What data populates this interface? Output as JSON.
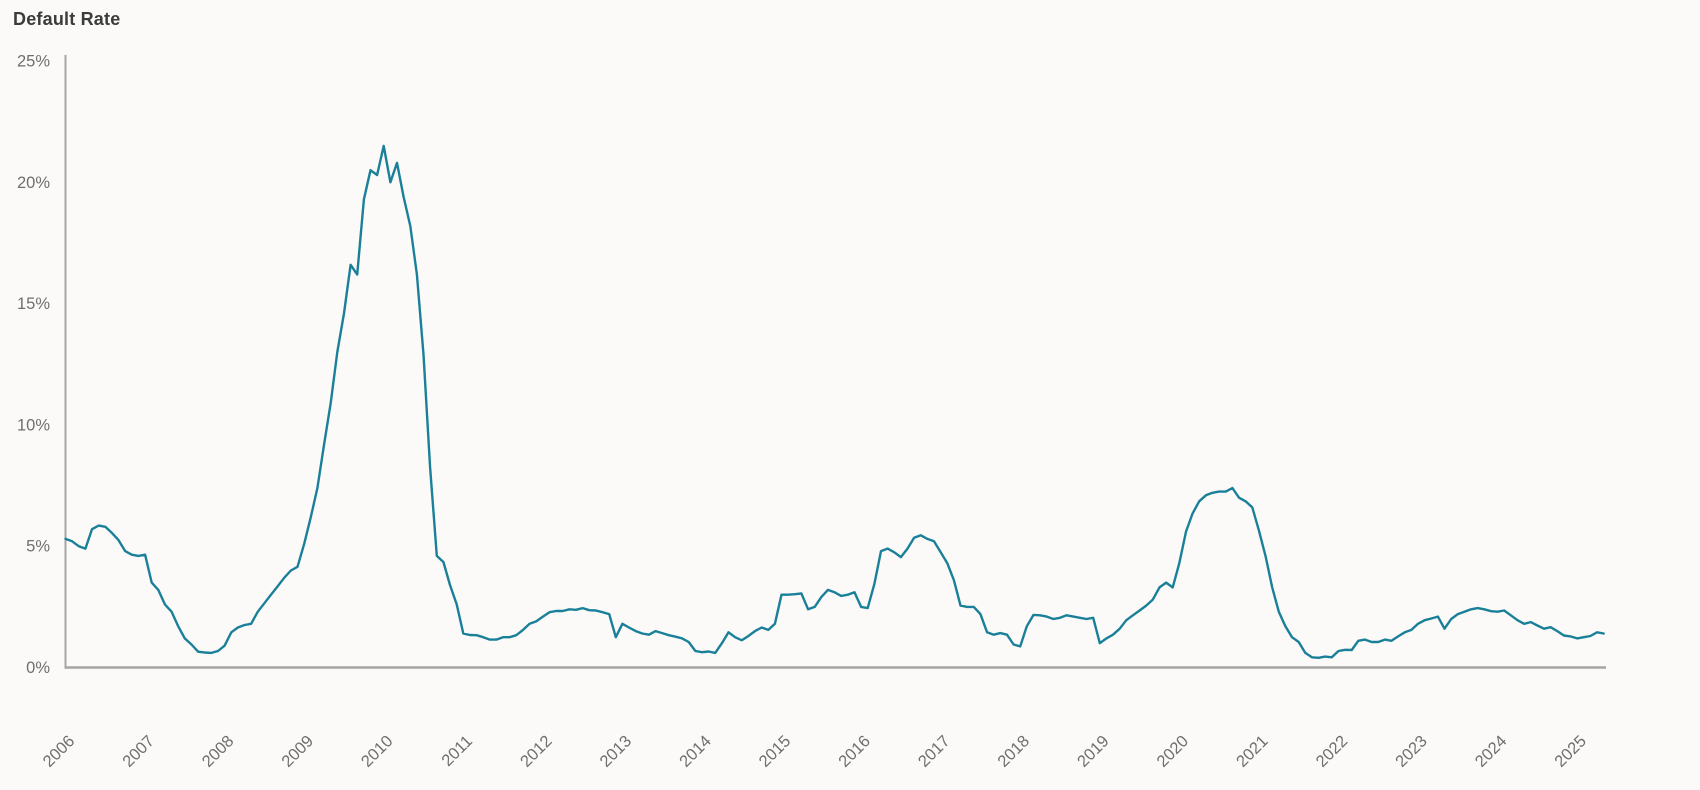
{
  "header": {
    "title": "Default Rate"
  },
  "style": {
    "background": "#fbfaf8",
    "line_color": "#1a8099",
    "axis_color": "#a5a5a5",
    "tick_label_color": "#6f6f6f",
    "title_color": "#3c3c3c"
  },
  "chart_data": {
    "type": "line",
    "title": "Default Rate",
    "xlabel": "",
    "ylabel": "",
    "x_frequency": "monthly",
    "x_start_label": "2006-01",
    "x_end_label": "2025-05",
    "x_tick_labels": [
      "2006",
      "2007",
      "2008",
      "2009",
      "2010",
      "2011",
      "2012",
      "2013",
      "2014",
      "2015",
      "2016",
      "2017",
      "2018",
      "2019",
      "2020",
      "2021",
      "2022",
      "2023",
      "2024",
      "2025"
    ],
    "y_tick_labels": [
      "0%",
      "5%",
      "10%",
      "15%",
      "20%",
      "25%"
    ],
    "y_tick_values": [
      0,
      5,
      10,
      15,
      20,
      25
    ],
    "ylim": [
      0,
      25
    ],
    "grid": false,
    "legend": "none",
    "notable_points": {
      "gfc_peak_pct": 21.5,
      "gfc_peak_date": "2010-01",
      "energy_cycle_peak_pct": 5.45,
      "energy_cycle_peak_date": "2016-10",
      "covid_peak_pct": 7.4,
      "covid_peak_date": "2020-09",
      "post_covid_trough_pct": 0.4,
      "post_covid_trough_date": "2021-10",
      "last_value_pct": 1.4
    },
    "series": [
      {
        "name": "Default Rate",
        "unit": "%",
        "color": "#1a8099",
        "values_pct": [
          5.3,
          5.2,
          5.0,
          4.9,
          5.7,
          5.85,
          5.8,
          5.55,
          5.25,
          4.8,
          4.65,
          4.6,
          4.65,
          3.5,
          3.2,
          2.6,
          2.3,
          1.7,
          1.2,
          0.95,
          0.65,
          0.62,
          0.6,
          0.68,
          0.9,
          1.45,
          1.65,
          1.75,
          1.8,
          2.3,
          2.65,
          3.0,
          3.35,
          3.7,
          4.0,
          4.15,
          5.1,
          6.2,
          7.4,
          9.2,
          10.9,
          13.0,
          14.6,
          16.6,
          16.2,
          19.3,
          20.5,
          20.3,
          21.5,
          20.0,
          20.8,
          19.4,
          18.2,
          16.2,
          12.9,
          8.25,
          4.6,
          4.35,
          3.4,
          2.6,
          1.4,
          1.34,
          1.33,
          1.25,
          1.15,
          1.15,
          1.25,
          1.25,
          1.33,
          1.55,
          1.8,
          1.9,
          2.1,
          2.28,
          2.33,
          2.33,
          2.4,
          2.38,
          2.45,
          2.36,
          2.35,
          2.28,
          2.2,
          1.25,
          1.8,
          1.65,
          1.5,
          1.4,
          1.35,
          1.5,
          1.42,
          1.33,
          1.27,
          1.2,
          1.05,
          0.68,
          0.63,
          0.66,
          0.6,
          1.0,
          1.45,
          1.25,
          1.12,
          1.3,
          1.5,
          1.65,
          1.55,
          1.8,
          3.0,
          3.0,
          3.02,
          3.05,
          2.4,
          2.5,
          2.9,
          3.2,
          3.1,
          2.95,
          3.0,
          3.1,
          2.5,
          2.45,
          3.45,
          4.8,
          4.9,
          4.75,
          4.55,
          4.9,
          5.35,
          5.45,
          5.3,
          5.2,
          4.75,
          4.3,
          3.6,
          2.55,
          2.5,
          2.5,
          2.2,
          1.45,
          1.35,
          1.42,
          1.35,
          0.95,
          0.87,
          1.7,
          2.17,
          2.15,
          2.1,
          2.0,
          2.05,
          2.15,
          2.1,
          2.05,
          2.0,
          2.05,
          1.0,
          1.2,
          1.35,
          1.6,
          1.95,
          2.15,
          2.35,
          2.55,
          2.8,
          3.3,
          3.5,
          3.3,
          4.3,
          5.6,
          6.35,
          6.85,
          7.1,
          7.2,
          7.25,
          7.25,
          7.4,
          7.0,
          6.85,
          6.6,
          5.65,
          4.6,
          3.3,
          2.3,
          1.7,
          1.25,
          1.05,
          0.6,
          0.42,
          0.4,
          0.45,
          0.42,
          0.68,
          0.73,
          0.72,
          1.1,
          1.15,
          1.05,
          1.05,
          1.15,
          1.1,
          1.28,
          1.45,
          1.55,
          1.8,
          1.95,
          2.02,
          2.1,
          1.6,
          2.0,
          2.2,
          2.3,
          2.4,
          2.45,
          2.4,
          2.32,
          2.3,
          2.35,
          2.15,
          1.95,
          1.8,
          1.87,
          1.73,
          1.6,
          1.66,
          1.5,
          1.32,
          1.28,
          1.2,
          1.25,
          1.3,
          1.45,
          1.4
        ]
      }
    ]
  }
}
